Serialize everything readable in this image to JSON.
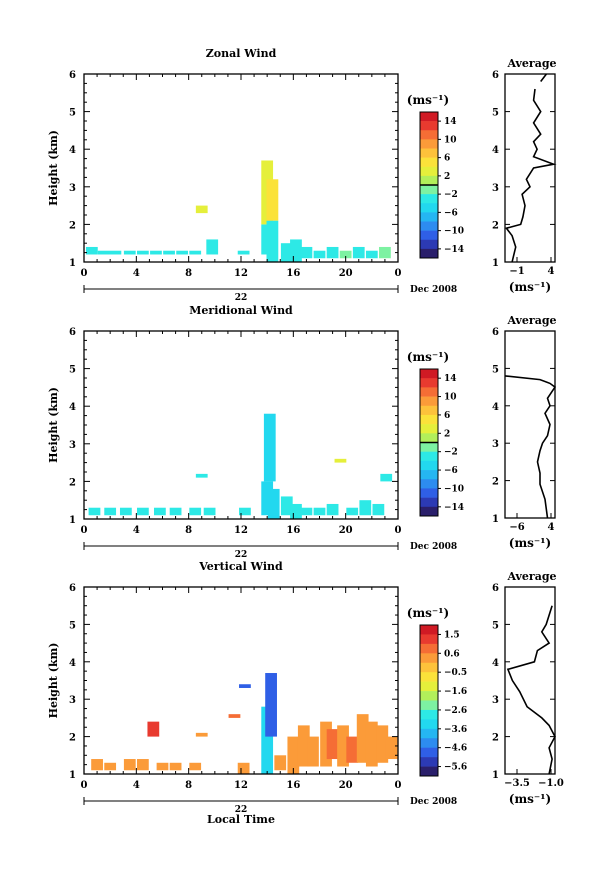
{
  "chart_data": [
    {
      "type": "heatmap",
      "title": "Zonal Wind",
      "ylabel": "Height (km)",
      "xlabel": "",
      "date_label": "Dec 2008",
      "day_label": "22",
      "x_ticks": [
        "0",
        "4",
        "8",
        "12",
        "16",
        "20",
        "0"
      ],
      "xlim": [
        0,
        24
      ],
      "y_ticks": [
        "1",
        "2",
        "3",
        "4",
        "5",
        "6"
      ],
      "ylim": [
        1,
        6
      ],
      "colorbar": {
        "unit": "(ms⁻¹)",
        "tick_labels": [
          "14",
          "10",
          "6",
          "2",
          "−2",
          "−6",
          "−10",
          "−14"
        ],
        "range": [
          -16,
          16
        ],
        "zero_line": 0
      },
      "cells": [
        {
          "t": 0.6,
          "h0": 1.2,
          "h1": 1.4,
          "v": -4
        },
        {
          "t": 1.5,
          "h0": 1.2,
          "h1": 1.3,
          "v": -4
        },
        {
          "t": 2.4,
          "h0": 1.2,
          "h1": 1.3,
          "v": -4
        },
        {
          "t": 3.5,
          "h0": 1.2,
          "h1": 1.3,
          "v": -4
        },
        {
          "t": 4.5,
          "h0": 1.2,
          "h1": 1.3,
          "v": -4
        },
        {
          "t": 5.5,
          "h0": 1.2,
          "h1": 1.3,
          "v": -4
        },
        {
          "t": 6.5,
          "h0": 1.2,
          "h1": 1.3,
          "v": -4
        },
        {
          "t": 7.5,
          "h0": 1.2,
          "h1": 1.3,
          "v": -4
        },
        {
          "t": 8.5,
          "h0": 1.2,
          "h1": 1.3,
          "v": -4
        },
        {
          "t": 9.0,
          "h0": 2.3,
          "h1": 2.5,
          "v": 3
        },
        {
          "t": 9.8,
          "h0": 1.2,
          "h1": 1.6,
          "v": -4
        },
        {
          "t": 12.2,
          "h0": 1.2,
          "h1": 1.3,
          "v": -4
        },
        {
          "t": 14.0,
          "h0": 1.2,
          "h1": 2.0,
          "v": -3
        },
        {
          "t": 14.0,
          "h0": 2.0,
          "h1": 3.7,
          "v": 3
        },
        {
          "t": 14.4,
          "h0": 1.0,
          "h1": 2.1,
          "v": -3
        },
        {
          "t": 14.4,
          "h0": 2.1,
          "h1": 3.2,
          "v": 4
        },
        {
          "t": 15.5,
          "h0": 1.0,
          "h1": 1.5,
          "v": -3
        },
        {
          "t": 16.2,
          "h0": 1.0,
          "h1": 1.6,
          "v": -3
        },
        {
          "t": 17.0,
          "h0": 1.1,
          "h1": 1.4,
          "v": -3
        },
        {
          "t": 18.0,
          "h0": 1.1,
          "h1": 1.3,
          "v": -3
        },
        {
          "t": 19.0,
          "h0": 1.1,
          "h1": 1.4,
          "v": -3
        },
        {
          "t": 20.0,
          "h0": 1.1,
          "h1": 1.3,
          "v": -2
        },
        {
          "t": 21.0,
          "h0": 1.1,
          "h1": 1.4,
          "v": -3
        },
        {
          "t": 22.0,
          "h0": 1.1,
          "h1": 1.3,
          "v": -3
        },
        {
          "t": 23.0,
          "h0": 1.1,
          "h1": 1.4,
          "v": -2
        }
      ],
      "profile": {
        "title": "Average",
        "xlabel": "(ms⁻¹)",
        "x_ticks": [
          "−1",
          "4"
        ],
        "xlim": [
          -2,
          5
        ],
        "ylim": [
          1,
          6
        ],
        "y_ticks": [
          "1",
          "2",
          "3",
          "4",
          "5",
          "6"
        ],
        "segments": [
          [
            [
              -1.0,
              1.0
            ],
            [
              -0.5,
              1.4
            ],
            [
              -1.0,
              1.7
            ],
            [
              -1.8,
              1.9
            ],
            [
              0.2,
              2.0
            ],
            [
              0.5,
              2.2
            ],
            [
              0.8,
              2.5
            ],
            [
              0.4,
              2.8
            ],
            [
              1.5,
              3.0
            ],
            [
              1.0,
              3.2
            ],
            [
              2.0,
              3.5
            ],
            [
              4.8,
              3.6
            ],
            [
              2.0,
              3.8
            ],
            [
              2.5,
              4.0
            ],
            [
              2.0,
              4.2
            ],
            [
              3.0,
              4.4
            ],
            [
              2.0,
              4.7
            ],
            [
              3.0,
              5.0
            ],
            [
              2.0,
              5.3
            ],
            [
              2.2,
              5.6
            ]
          ],
          [
            [
              3.0,
              5.8
            ],
            [
              3.8,
              6.0
            ]
          ]
        ]
      }
    },
    {
      "type": "heatmap",
      "title": "Meridional Wind",
      "ylabel": "Height (km)",
      "xlabel": "",
      "date_label": "Dec 2008",
      "day_label": "22",
      "x_ticks": [
        "0",
        "4",
        "8",
        "12",
        "16",
        "20",
        "0"
      ],
      "xlim": [
        0,
        24
      ],
      "y_ticks": [
        "1",
        "2",
        "3",
        "4",
        "5",
        "6"
      ],
      "ylim": [
        1,
        6
      ],
      "colorbar": {
        "unit": "(ms⁻¹)",
        "tick_labels": [
          "14",
          "10",
          "6",
          "2",
          "−2",
          "−6",
          "−10",
          "−14"
        ],
        "range": [
          -16,
          16
        ],
        "zero_line": 0
      },
      "cells": [
        {
          "t": 0.8,
          "h0": 1.1,
          "h1": 1.3,
          "v": -4
        },
        {
          "t": 2.0,
          "h0": 1.1,
          "h1": 1.3,
          "v": -4
        },
        {
          "t": 3.2,
          "h0": 1.1,
          "h1": 1.3,
          "v": -4
        },
        {
          "t": 4.5,
          "h0": 1.1,
          "h1": 1.3,
          "v": -4
        },
        {
          "t": 5.8,
          "h0": 1.1,
          "h1": 1.3,
          "v": -4
        },
        {
          "t": 7.0,
          "h0": 1.1,
          "h1": 1.3,
          "v": -4
        },
        {
          "t": 8.5,
          "h0": 1.1,
          "h1": 1.3,
          "v": -4
        },
        {
          "t": 9.0,
          "h0": 2.1,
          "h1": 2.2,
          "v": -4
        },
        {
          "t": 9.6,
          "h0": 1.1,
          "h1": 1.3,
          "v": -4
        },
        {
          "t": 12.3,
          "h0": 1.1,
          "h1": 1.3,
          "v": -4
        },
        {
          "t": 14.0,
          "h0": 1.1,
          "h1": 2.0,
          "v": -5
        },
        {
          "t": 14.2,
          "h0": 2.0,
          "h1": 3.8,
          "v": -6
        },
        {
          "t": 14.5,
          "h0": 1.0,
          "h1": 1.8,
          "v": -6
        },
        {
          "t": 15.5,
          "h0": 1.1,
          "h1": 1.6,
          "v": -4
        },
        {
          "t": 16.2,
          "h0": 1.0,
          "h1": 1.4,
          "v": -4
        },
        {
          "t": 17.0,
          "h0": 1.1,
          "h1": 1.3,
          "v": -4
        },
        {
          "t": 18.0,
          "h0": 1.1,
          "h1": 1.3,
          "v": -4
        },
        {
          "t": 19.0,
          "h0": 1.1,
          "h1": 1.4,
          "v": -4
        },
        {
          "t": 19.6,
          "h0": 2.5,
          "h1": 2.6,
          "v": 3
        },
        {
          "t": 20.5,
          "h0": 1.1,
          "h1": 1.3,
          "v": -4
        },
        {
          "t": 21.5,
          "h0": 1.1,
          "h1": 1.5,
          "v": -4
        },
        {
          "t": 22.5,
          "h0": 1.1,
          "h1": 1.4,
          "v": -4
        },
        {
          "t": 23.1,
          "h0": 2.0,
          "h1": 2.2,
          "v": -4
        }
      ],
      "profile": {
        "title": "Average",
        "xlabel": "(ms⁻¹)",
        "x_ticks": [
          "−6",
          "4"
        ],
        "xlim": [
          -6,
          4
        ],
        "ylim": [
          1,
          6
        ],
        "y_ticks": [
          "1",
          "2",
          "3",
          "4",
          "5",
          "6"
        ],
        "segments": [
          [
            [
              2.5,
              1.0
            ],
            [
              2.0,
              1.5
            ],
            [
              1.0,
              1.9
            ],
            [
              1.0,
              2.2
            ],
            [
              0.5,
              2.5
            ],
            [
              1.0,
              2.8
            ],
            [
              1.5,
              3.0
            ],
            [
              2.5,
              3.2
            ],
            [
              3.0,
              3.5
            ],
            [
              2.0,
              3.8
            ],
            [
              3.0,
              4.0
            ],
            [
              2.5,
              4.2
            ],
            [
              4.0,
              4.5
            ],
            [
              3.0,
              4.6
            ],
            [
              1.0,
              4.7
            ],
            [
              -6.0,
              4.8
            ]
          ]
        ]
      }
    },
    {
      "type": "heatmap",
      "title": "Vertical Wind",
      "ylabel": "Height (km)",
      "xlabel": "Local Time",
      "date_label": "Dec 2008",
      "day_label": "22",
      "x_ticks": [
        "0",
        "4",
        "8",
        "12",
        "16",
        "20",
        "0"
      ],
      "xlim": [
        0,
        24
      ],
      "y_ticks": [
        "1",
        "2",
        "3",
        "4",
        "5",
        "6"
      ],
      "ylim": [
        1,
        6
      ],
      "colorbar": {
        "unit": "(ms⁻¹)",
        "tick_labels": [
          "1.5",
          "0.6",
          "−0.5",
          "−1.6",
          "−2.6",
          "−3.6",
          "−4.6",
          "−5.6"
        ],
        "range": [
          -6.0,
          2.0
        ],
        "zero_line": null
      },
      "cells": [
        {
          "t": 1.0,
          "h0": 1.1,
          "h1": 1.4,
          "v": 0.0
        },
        {
          "t": 2.0,
          "h0": 1.1,
          "h1": 1.3,
          "v": 0.0
        },
        {
          "t": 3.5,
          "h0": 1.1,
          "h1": 1.4,
          "v": 0.0
        },
        {
          "t": 4.5,
          "h0": 1.1,
          "h1": 1.4,
          "v": 0.0
        },
        {
          "t": 5.3,
          "h0": 2.0,
          "h1": 2.4,
          "v": 1.0
        },
        {
          "t": 6.0,
          "h0": 1.1,
          "h1": 1.3,
          "v": 0.0
        },
        {
          "t": 7.0,
          "h0": 1.1,
          "h1": 1.3,
          "v": 0.0
        },
        {
          "t": 8.5,
          "h0": 1.1,
          "h1": 1.3,
          "v": 0.0
        },
        {
          "t": 9.0,
          "h0": 2.0,
          "h1": 2.1,
          "v": 0.0
        },
        {
          "t": 11.5,
          "h0": 2.5,
          "h1": 2.6,
          "v": 0.5
        },
        {
          "t": 12.2,
          "h0": 1.0,
          "h1": 1.3,
          "v": 0.0
        },
        {
          "t": 12.3,
          "h0": 3.3,
          "h1": 3.4,
          "v": -5.0
        },
        {
          "t": 14.0,
          "h0": 1.0,
          "h1": 2.8,
          "v": -3.5
        },
        {
          "t": 14.3,
          "h0": 2.0,
          "h1": 3.7,
          "v": -5.0
        },
        {
          "t": 15.0,
          "h0": 1.1,
          "h1": 1.5,
          "v": 0.0
        },
        {
          "t": 16.0,
          "h0": 1.0,
          "h1": 2.0,
          "v": 0.0
        },
        {
          "t": 16.8,
          "h0": 1.2,
          "h1": 2.3,
          "v": 0.0
        },
        {
          "t": 17.5,
          "h0": 1.2,
          "h1": 2.0,
          "v": 0.0
        },
        {
          "t": 18.5,
          "h0": 1.2,
          "h1": 2.4,
          "v": 0.0
        },
        {
          "t": 19.0,
          "h0": 1.4,
          "h1": 2.2,
          "v": 0.8
        },
        {
          "t": 19.8,
          "h0": 1.2,
          "h1": 2.3,
          "v": 0.0
        },
        {
          "t": 20.5,
          "h0": 1.3,
          "h1": 2.0,
          "v": 0.8
        },
        {
          "t": 21.3,
          "h0": 1.3,
          "h1": 2.6,
          "v": 0.0
        },
        {
          "t": 22.0,
          "h0": 1.2,
          "h1": 2.4,
          "v": 0.0
        },
        {
          "t": 22.8,
          "h0": 1.3,
          "h1": 2.3,
          "v": 0.0
        },
        {
          "t": 23.5,
          "h0": 1.4,
          "h1": 2.0,
          "v": 0.0
        }
      ],
      "profile": {
        "title": "Average",
        "xlabel": "(ms⁻¹)",
        "x_ticks": [
          "−3.5",
          "−1.0"
        ],
        "xlim": [
          -4.0,
          -0.6
        ],
        "ylim": [
          1,
          6
        ],
        "y_ticks": [
          "1",
          "2",
          "3",
          "4",
          "5",
          "6"
        ],
        "segments": [
          [
            [
              -1.0,
              1.0
            ],
            [
              -0.8,
              1.4
            ],
            [
              -1.0,
              1.7
            ],
            [
              -0.6,
              2.0
            ],
            [
              -1.0,
              2.3
            ],
            [
              -1.5,
              2.5
            ],
            [
              -2.5,
              2.8
            ],
            [
              -3.0,
              3.2
            ],
            [
              -3.5,
              3.5
            ],
            [
              -3.8,
              3.8
            ],
            [
              -2.0,
              4.0
            ],
            [
              -1.8,
              4.3
            ],
            [
              -1.0,
              4.5
            ],
            [
              -1.5,
              4.8
            ],
            [
              -1.2,
              5.0
            ],
            [
              -0.8,
              5.5
            ]
          ]
        ]
      }
    }
  ]
}
